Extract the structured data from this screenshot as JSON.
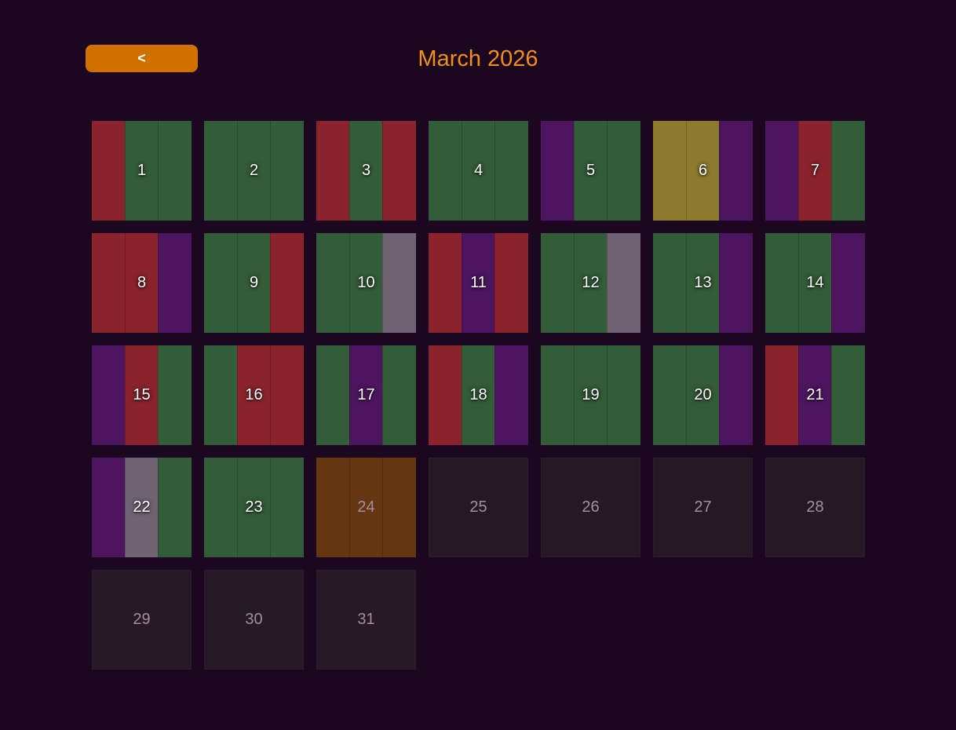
{
  "header": {
    "back_label": "<",
    "title": "March 2026"
  },
  "colors": {
    "background": "#1c0720",
    "accent": "#d07000",
    "title": "#ef8f1a",
    "red": "#8a232c",
    "green": "#335c38",
    "purple": "#4d1560",
    "gray": "#6f6373",
    "olive": "#8c7a2f",
    "brown": "#663512",
    "empty": "#271826"
  },
  "days": [
    {
      "label": "1",
      "stripes": [
        "red",
        "green",
        "green"
      ]
    },
    {
      "label": "2",
      "stripes": [
        "green",
        "green",
        "green"
      ]
    },
    {
      "label": "3",
      "stripes": [
        "red",
        "green",
        "red"
      ]
    },
    {
      "label": "4",
      "stripes": [
        "green",
        "green",
        "green"
      ]
    },
    {
      "label": "5",
      "stripes": [
        "purple",
        "green",
        "green"
      ]
    },
    {
      "label": "6",
      "stripes": [
        "olive",
        "olive",
        "purple"
      ]
    },
    {
      "label": "7",
      "stripes": [
        "purple",
        "red",
        "green"
      ]
    },
    {
      "label": "8",
      "stripes": [
        "red",
        "red",
        "purple"
      ]
    },
    {
      "label": "9",
      "stripes": [
        "green",
        "green",
        "red"
      ]
    },
    {
      "label": "10",
      "stripes": [
        "green",
        "green",
        "gray"
      ]
    },
    {
      "label": "11",
      "stripes": [
        "red",
        "purple",
        "red"
      ]
    },
    {
      "label": "12",
      "stripes": [
        "green",
        "green",
        "gray"
      ]
    },
    {
      "label": "13",
      "stripes": [
        "green",
        "green",
        "purple"
      ]
    },
    {
      "label": "14",
      "stripes": [
        "green",
        "green",
        "purple"
      ]
    },
    {
      "label": "15",
      "stripes": [
        "purple",
        "red",
        "green"
      ]
    },
    {
      "label": "16",
      "stripes": [
        "green",
        "red",
        "red"
      ]
    },
    {
      "label": "17",
      "stripes": [
        "green",
        "purple",
        "green"
      ]
    },
    {
      "label": "18",
      "stripes": [
        "red",
        "green",
        "purple"
      ]
    },
    {
      "label": "19",
      "stripes": [
        "green",
        "green",
        "green"
      ]
    },
    {
      "label": "20",
      "stripes": [
        "green",
        "green",
        "purple"
      ]
    },
    {
      "label": "21",
      "stripes": [
        "red",
        "purple",
        "green"
      ]
    },
    {
      "label": "22",
      "stripes": [
        "purple",
        "gray",
        "green"
      ]
    },
    {
      "label": "23",
      "stripes": [
        "green",
        "green",
        "green"
      ]
    },
    {
      "label": "24",
      "stripes": [
        "brown",
        "brown",
        "brown"
      ],
      "muted": true
    },
    {
      "label": "25",
      "stripes": []
    },
    {
      "label": "26",
      "stripes": []
    },
    {
      "label": "27",
      "stripes": []
    },
    {
      "label": "28",
      "stripes": []
    },
    {
      "label": "29",
      "stripes": []
    },
    {
      "label": "30",
      "stripes": []
    },
    {
      "label": "31",
      "stripes": []
    }
  ]
}
